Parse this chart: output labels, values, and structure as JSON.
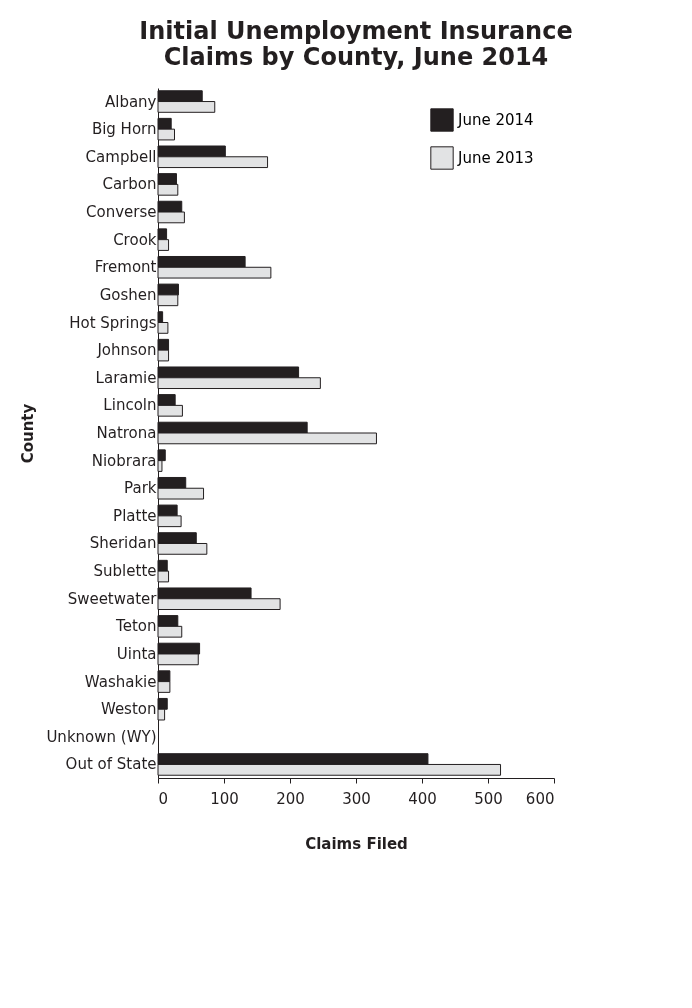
{
  "chart_data": {
    "type": "bar",
    "orientation": "horizontal",
    "title": "Initial Unemployment Insurance\nClaims by County, June 2014",
    "xlabel": "Claims Filed",
    "ylabel": "County",
    "categories": [
      "Albany",
      "Big Horn",
      "Campbell",
      "Carbon",
      "Converse",
      "Crook",
      "Fremont",
      "Goshen",
      "Hot Springs",
      "Johnson",
      "Laramie",
      "Lincoln",
      "Natrona",
      "Niobrara",
      "Park",
      "Platte",
      "Sheridan",
      "Sublette",
      "Sweetwater",
      "Teton",
      "Uinta",
      "Washakie",
      "Weston",
      "Unknown (WY)",
      "Out of State"
    ],
    "series": [
      {
        "name": "June 2014",
        "color": "#231f20",
        "values": [
          67,
          20,
          102,
          28,
          36,
          13,
          132,
          31,
          7,
          16,
          213,
          26,
          226,
          11,
          42,
          29,
          58,
          14,
          141,
          30,
          63,
          18,
          14,
          null,
          409
        ]
      },
      {
        "name": "June 2013",
        "color": "#e2e3e4",
        "values": [
          86,
          25,
          166,
          30,
          40,
          16,
          171,
          30,
          15,
          16,
          246,
          37,
          331,
          6,
          69,
          35,
          74,
          16,
          185,
          36,
          61,
          18,
          10,
          null,
          519
        ]
      }
    ],
    "xlim": [
      0,
      600
    ],
    "xticks": [
      0,
      100,
      200,
      300,
      400,
      500,
      600
    ],
    "grid": false,
    "legend": "top right"
  }
}
